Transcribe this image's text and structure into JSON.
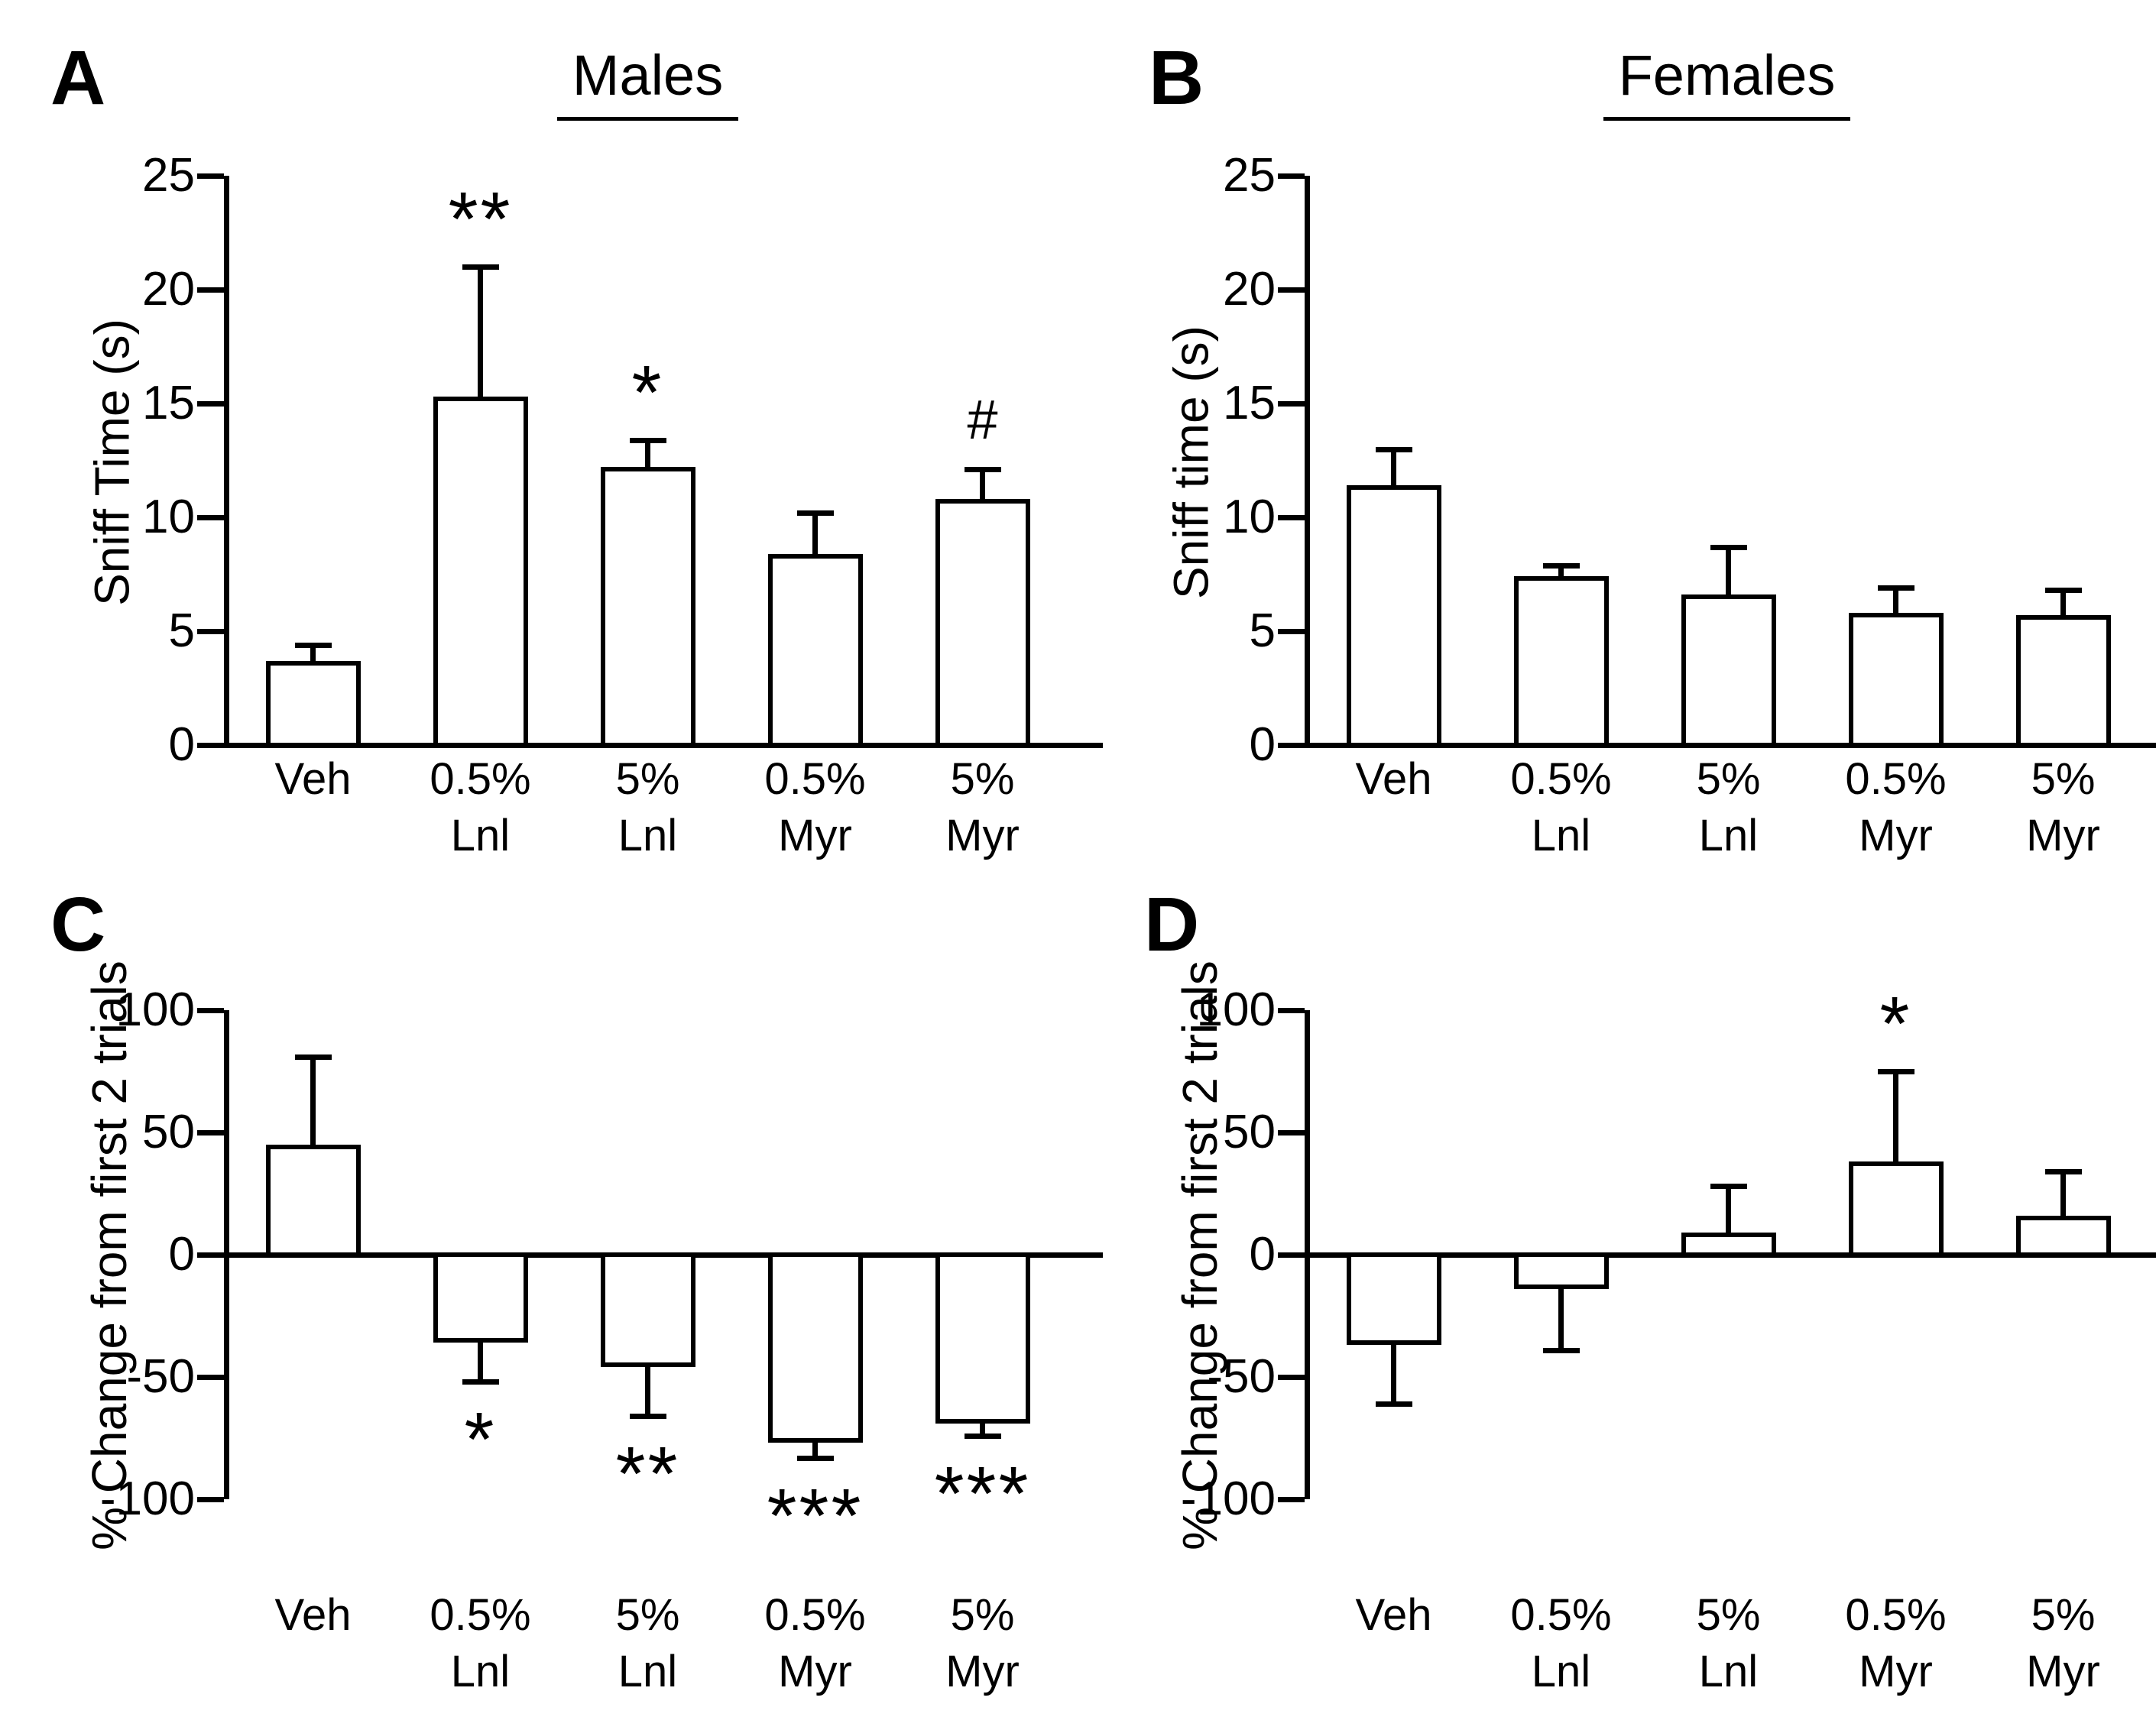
{
  "figure": {
    "background_color": "#ffffff",
    "ink_color": "#000000",
    "bar_fill_color": "#ffffff",
    "bar_stroke_color": "#000000"
  },
  "chart_data": [
    {
      "type": "bar",
      "letter": "A",
      "title": "Males",
      "ylabel": "Sniff Time (s)",
      "categories": [
        "Veh",
        "0.5%\nLnl",
        "5%\nLnl",
        "0.5%\nMyr",
        "5%\nMyr"
      ],
      "values": [
        3.7,
        15.3,
        12.2,
        8.4,
        10.8
      ],
      "errors": [
        0.7,
        5.7,
        1.2,
        1.8,
        1.3
      ],
      "sig": [
        "",
        "**",
        "*",
        "",
        "#"
      ],
      "ylim": [
        0,
        25
      ],
      "yticks": [
        0,
        5,
        10,
        15,
        20,
        25
      ],
      "grid": false,
      "legend": false
    },
    {
      "type": "bar",
      "letter": "B",
      "title": "Females",
      "ylabel": "Sniff time (s)",
      "categories": [
        "Veh",
        "0.5%\nLnl",
        "5%\nLnl",
        "0.5%\nMyr",
        "5%\nMyr"
      ],
      "values": [
        11.4,
        7.4,
        6.6,
        5.8,
        5.7
      ],
      "errors": [
        1.6,
        0.5,
        2.1,
        1.1,
        1.1
      ],
      "sig": [
        "",
        "",
        "",
        "",
        ""
      ],
      "ylim": [
        0,
        25
      ],
      "yticks": [
        0,
        5,
        10,
        15,
        20,
        25
      ],
      "grid": false,
      "legend": false
    },
    {
      "type": "bar",
      "letter": "C",
      "ylabel": "% Change from first 2 trials",
      "categories": [
        "Veh",
        "0.5%\nLnl",
        "5%\nLnl",
        "0.5%\nMyr",
        "5%\nMyr"
      ],
      "values": [
        45,
        -36,
        -46,
        -77,
        -69
      ],
      "errors": [
        36,
        16,
        20,
        6,
        5
      ],
      "sig": [
        "",
        "*",
        "**",
        "***",
        "***"
      ],
      "ylim": [
        -100,
        100
      ],
      "yticks": [
        -100,
        -50,
        0,
        50,
        100
      ],
      "grid": false,
      "legend": false
    },
    {
      "type": "bar",
      "letter": "D",
      "ylabel": "% Change from first 2 trials",
      "categories": [
        "Veh",
        "0.5%\nLnl",
        "5%\nLnl",
        "0.5%\nMyr",
        "5%\nMyr"
      ],
      "values": [
        -37,
        -14,
        9,
        38,
        16
      ],
      "errors": [
        24,
        25,
        19,
        37,
        18
      ],
      "sig": [
        "",
        "",
        "",
        "*",
        ""
      ],
      "ylim": [
        -100,
        100
      ],
      "yticks": [
        -100,
        -50,
        0,
        50,
        100
      ],
      "grid": false,
      "legend": false
    }
  ]
}
